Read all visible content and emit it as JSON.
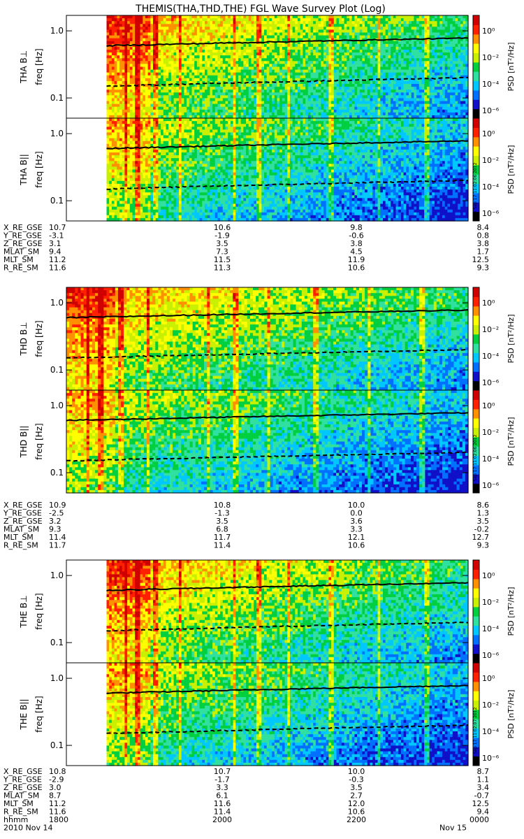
{
  "title": "THEMIS(THA,THD,THE) FGL Wave Survey Plot (Log)",
  "colorbar": {
    "label": "PSD [nT²/Hz]",
    "ticks": [
      "10⁰",
      "10⁻²",
      "10⁻⁴",
      "10⁻⁶"
    ],
    "colors": [
      "#000000",
      "#1010c8",
      "#0070ff",
      "#00c8ff",
      "#30e0a0",
      "#00d040",
      "#c8f000",
      "#ffff00",
      "#ff9000",
      "#ff2000",
      "#d00000"
    ]
  },
  "stamps": [
    "Mon Sep 17 11:02:06 2012",
    "Mon Sep 17 11:02:06 2012",
    "Mon Sep 17 11:02:07 2012"
  ],
  "chart_data": [
    {
      "type": "heatmap",
      "ylabel": "THA B⊥",
      "yunit": "freq [Hz]",
      "yticks": [
        "1.0",
        "0.1"
      ],
      "scale": "log",
      "data_start": 0.1,
      "lines": [
        "solid",
        "dashed"
      ]
    },
    {
      "type": "heatmap",
      "ylabel": "THA B||",
      "yunit": "freq [Hz]",
      "yticks": [
        "1.0",
        "0.1"
      ],
      "scale": "log",
      "data_start": 0.1,
      "lines": [
        "solid",
        "dashed"
      ]
    },
    {
      "type": "heatmap",
      "ylabel": "THD B⊥",
      "yunit": "freq [Hz]",
      "yticks": [
        "1.0",
        "0.1"
      ],
      "scale": "log",
      "data_start": 0.0,
      "lines": [
        "solid",
        "dashed"
      ]
    },
    {
      "type": "heatmap",
      "ylabel": "THD B||",
      "yunit": "freq [Hz]",
      "yticks": [
        "1.0",
        "0.1"
      ],
      "scale": "log",
      "data_start": 0.0,
      "lines": [
        "solid",
        "dashed"
      ]
    },
    {
      "type": "heatmap",
      "ylabel": "THE B⊥",
      "yunit": "freq [Hz]",
      "yticks": [
        "1.0",
        "0.1"
      ],
      "scale": "log",
      "data_start": 0.1,
      "lines": [
        "solid",
        "dashed"
      ]
    },
    {
      "type": "heatmap",
      "ylabel": "THE B||",
      "yunit": "freq [Hz]",
      "yticks": [
        "1.0",
        "0.1"
      ],
      "scale": "log",
      "data_start": 0.1,
      "lines": [
        "solid",
        "dashed"
      ]
    }
  ],
  "ephemeris": [
    {
      "rows": [
        {
          "label": "X_RE_GSE",
          "values": [
            "10.7",
            "10.6",
            "9.8",
            "8.4"
          ]
        },
        {
          "label": "Y_RE_GSE",
          "values": [
            "-3.1",
            "-1.9",
            "-0.6",
            "0.8"
          ]
        },
        {
          "label": "Z_RE_GSE",
          "values": [
            "3.1",
            "3.5",
            "3.8",
            "3.8"
          ]
        },
        {
          "label": "MLAT_SM",
          "values": [
            "9.4",
            "7.3",
            "4.5",
            "1.7"
          ]
        },
        {
          "label": "MLT_SM",
          "values": [
            "11.2",
            "11.5",
            "11.9",
            "12.5"
          ]
        },
        {
          "label": "R_RE_SM",
          "values": [
            "11.6",
            "11.3",
            "10.6",
            "9.3"
          ]
        }
      ]
    },
    {
      "rows": [
        {
          "label": "X_RE_GSE",
          "values": [
            "10.9",
            "10.8",
            "10.0",
            "8.6"
          ]
        },
        {
          "label": "Y_RE_GSE",
          "values": [
            "-2.5",
            "-1.3",
            "0.0",
            "1.3"
          ]
        },
        {
          "label": "Z_RE_GSE",
          "values": [
            "3.2",
            "3.5",
            "3.6",
            "3.5"
          ]
        },
        {
          "label": "MLAT_SM",
          "values": [
            "9.3",
            "6.8",
            "3.3",
            "-0.2"
          ]
        },
        {
          "label": "MLT_SM",
          "values": [
            "11.4",
            "11.7",
            "12.1",
            "12.7"
          ]
        },
        {
          "label": "R_RE_SM",
          "values": [
            "11.7",
            "11.4",
            "10.6",
            "9.3"
          ]
        }
      ]
    },
    {
      "rows": [
        {
          "label": "X_RE_GSE",
          "values": [
            "10.8",
            "10.7",
            "10.0",
            "8.7"
          ]
        },
        {
          "label": "Y_RE_GSE",
          "values": [
            "-2.9",
            "-1.7",
            "-0.3",
            "1.1"
          ]
        },
        {
          "label": "Z_RE_GSE",
          "values": [
            "3.0",
            "3.3",
            "3.5",
            "3.4"
          ]
        },
        {
          "label": "MLAT_SM",
          "values": [
            "8.7",
            "6.1",
            "2.7",
            "-0.7"
          ]
        },
        {
          "label": "MLT_SM",
          "values": [
            "11.2",
            "11.6",
            "12.0",
            "12.5"
          ]
        },
        {
          "label": "R_RE_SM",
          "values": [
            "11.6",
            "11.4",
            "10.6",
            "9.4"
          ]
        },
        {
          "label": "hhmm",
          "values": [
            "1800",
            "2000",
            "2200",
            "0000"
          ]
        }
      ],
      "date_row": {
        "left": "2010    Nov 14",
        "right": "Nov 15"
      }
    }
  ]
}
